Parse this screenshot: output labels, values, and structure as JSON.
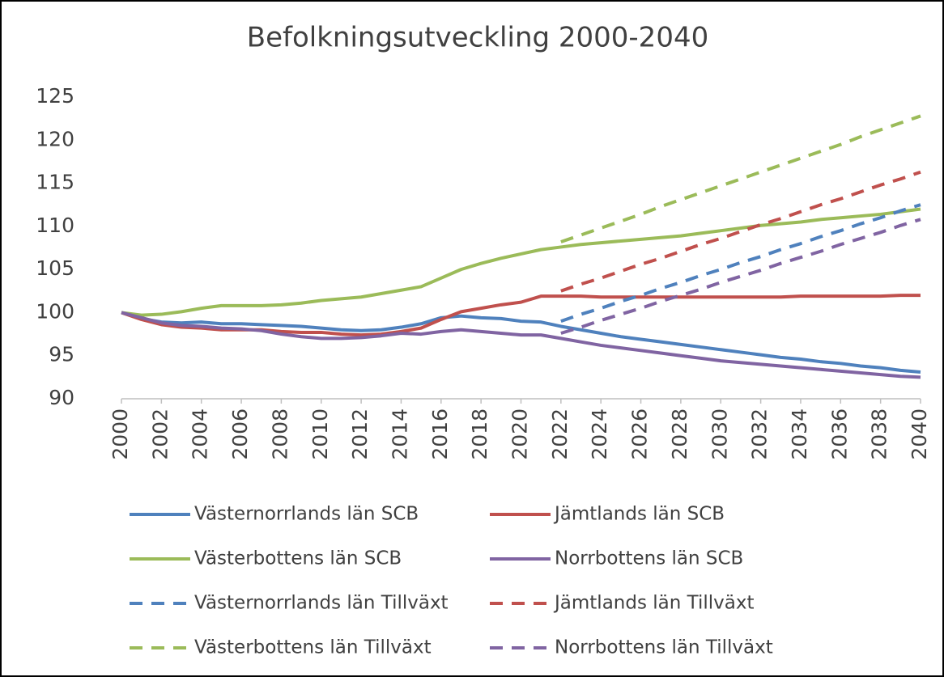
{
  "chart_data": {
    "type": "line",
    "title": "Befolkningsutveckling 2000-2040",
    "x": [
      2000,
      2001,
      2002,
      2003,
      2004,
      2005,
      2006,
      2007,
      2008,
      2009,
      2010,
      2011,
      2012,
      2013,
      2014,
      2015,
      2016,
      2017,
      2018,
      2019,
      2020,
      2021,
      2022,
      2023,
      2024,
      2025,
      2026,
      2027,
      2028,
      2029,
      2030,
      2031,
      2032,
      2033,
      2034,
      2035,
      2036,
      2037,
      2038,
      2039,
      2040
    ],
    "xlim": [
      2000,
      2040
    ],
    "xticks": [
      2000,
      2002,
      2004,
      2006,
      2008,
      2010,
      2012,
      2014,
      2016,
      2018,
      2020,
      2022,
      2024,
      2026,
      2028,
      2030,
      2032,
      2034,
      2036,
      2038,
      2040
    ],
    "ylim": [
      90,
      125
    ],
    "yticks": [
      90,
      95,
      100,
      105,
      110,
      115,
      120,
      125
    ],
    "grid": false,
    "legend": "bottom",
    "series": [
      {
        "name": "Västernorrlands län SCB",
        "color": "#4f81bd",
        "dashed": false,
        "values": [
          100,
          99.3,
          98.9,
          98.8,
          98.9,
          98.7,
          98.7,
          98.6,
          98.5,
          98.4,
          98.2,
          98.0,
          97.9,
          98.0,
          98.3,
          98.7,
          99.4,
          99.6,
          99.4,
          99.3,
          99.0,
          98.9,
          98.4,
          98.0,
          97.6,
          97.2,
          96.9,
          96.6,
          96.3,
          96.0,
          95.7,
          95.4,
          95.1,
          94.8,
          94.6,
          94.3,
          94.1,
          93.8,
          93.6,
          93.3,
          93.1
        ]
      },
      {
        "name": "Jämtlands län SCB",
        "color": "#c0504d",
        "dashed": false,
        "values": [
          100,
          99.2,
          98.6,
          98.3,
          98.2,
          98.0,
          98.0,
          98.0,
          97.8,
          97.7,
          97.7,
          97.5,
          97.4,
          97.5,
          97.8,
          98.2,
          99.2,
          100.1,
          100.5,
          100.9,
          101.2,
          101.9,
          101.9,
          101.9,
          101.8,
          101.8,
          101.8,
          101.8,
          101.8,
          101.8,
          101.8,
          101.8,
          101.8,
          101.8,
          101.9,
          101.9,
          101.9,
          101.9,
          101.9,
          102.0,
          102.0
        ]
      },
      {
        "name": "Västerbottens län SCB",
        "color": "#9bbb59",
        "dashed": false,
        "values": [
          100,
          99.7,
          99.8,
          100.1,
          100.5,
          100.8,
          100.8,
          100.8,
          100.9,
          101.1,
          101.4,
          101.6,
          101.8,
          102.2,
          102.6,
          103.0,
          104.0,
          105.0,
          105.7,
          106.3,
          106.8,
          107.3,
          107.6,
          107.9,
          108.1,
          108.3,
          108.5,
          108.7,
          108.9,
          109.2,
          109.5,
          109.8,
          110.1,
          110.3,
          110.5,
          110.8,
          111.0,
          111.2,
          111.4,
          111.7,
          112.0
        ]
      },
      {
        "name": "Norrbottens län SCB",
        "color": "#8064a2",
        "dashed": false,
        "values": [
          100,
          99.4,
          98.8,
          98.5,
          98.4,
          98.2,
          98.1,
          97.9,
          97.5,
          97.2,
          97.0,
          97.0,
          97.1,
          97.3,
          97.6,
          97.5,
          97.8,
          98.0,
          97.8,
          97.6,
          97.4,
          97.4,
          97.0,
          96.6,
          96.2,
          95.9,
          95.6,
          95.3,
          95.0,
          94.7,
          94.4,
          94.2,
          94.0,
          93.8,
          93.6,
          93.4,
          93.2,
          93.0,
          92.8,
          92.6,
          92.5
        ]
      },
      {
        "name": "Västernorrlands län Tillväxt",
        "color": "#4f81bd",
        "dashed": true,
        "values": [
          null,
          null,
          null,
          null,
          null,
          null,
          null,
          null,
          null,
          null,
          null,
          null,
          null,
          null,
          null,
          null,
          null,
          null,
          null,
          null,
          null,
          null,
          99.0,
          99.8,
          100.5,
          101.3,
          102.0,
          102.8,
          103.5,
          104.3,
          105.0,
          105.8,
          106.5,
          107.3,
          108.0,
          108.8,
          109.5,
          110.3,
          111.0,
          111.8,
          112.5
        ]
      },
      {
        "name": "Jämtlands län Tillväxt",
        "color": "#c0504d",
        "dashed": true,
        "values": [
          null,
          null,
          null,
          null,
          null,
          null,
          null,
          null,
          null,
          null,
          null,
          null,
          null,
          null,
          null,
          null,
          null,
          null,
          null,
          null,
          null,
          null,
          102.5,
          103.3,
          104.0,
          104.8,
          105.6,
          106.3,
          107.1,
          107.9,
          108.6,
          109.4,
          110.2,
          110.9,
          111.7,
          112.5,
          113.2,
          114.0,
          114.8,
          115.5,
          116.3
        ]
      },
      {
        "name": "Västerbottens län Tillväxt",
        "color": "#9bbb59",
        "dashed": true,
        "values": [
          null,
          null,
          null,
          null,
          null,
          null,
          null,
          null,
          null,
          null,
          null,
          null,
          null,
          null,
          null,
          null,
          null,
          null,
          null,
          null,
          null,
          null,
          108.2,
          109.0,
          109.8,
          110.6,
          111.4,
          112.3,
          113.1,
          113.9,
          114.7,
          115.5,
          116.3,
          117.1,
          117.9,
          118.7,
          119.5,
          120.4,
          121.2,
          122.0,
          122.8
        ]
      },
      {
        "name": "Norrbottens län Tillväxt",
        "color": "#8064a2",
        "dashed": true,
        "values": [
          null,
          null,
          null,
          null,
          null,
          null,
          null,
          null,
          null,
          null,
          null,
          null,
          null,
          null,
          null,
          null,
          null,
          null,
          null,
          null,
          null,
          null,
          97.6,
          98.3,
          99.1,
          99.8,
          100.5,
          101.3,
          102.0,
          102.7,
          103.5,
          104.2,
          104.9,
          105.7,
          106.4,
          107.1,
          107.9,
          108.6,
          109.3,
          110.1,
          110.8
        ]
      }
    ]
  }
}
